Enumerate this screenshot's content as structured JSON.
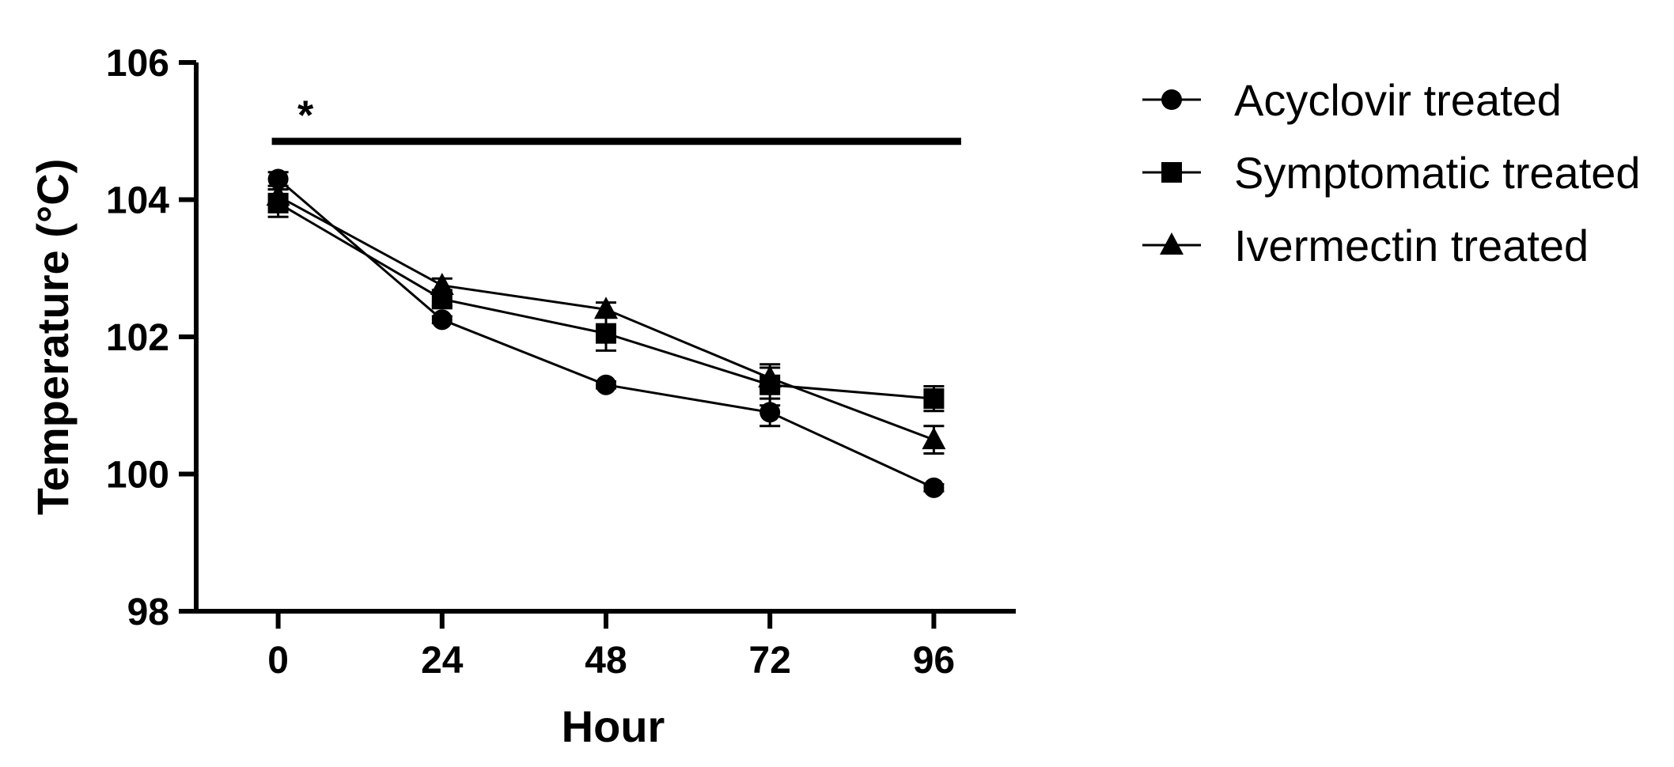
{
  "chart_data": {
    "type": "line",
    "xlabel": "Hour",
    "ylabel": "Temperature (°C)",
    "x": [
      0,
      24,
      48,
      72,
      96
    ],
    "x_tick_labels": [
      "0",
      "24",
      "48",
      "72",
      "96"
    ],
    "xlim": [
      -12,
      108
    ],
    "ylim": [
      98,
      106
    ],
    "y_ticks": [
      98,
      100,
      102,
      104,
      106
    ],
    "y_tick_labels": [
      "98",
      "100",
      "102",
      "104",
      "106"
    ],
    "grid": false,
    "legend_position": "top-right",
    "series": [
      {
        "name": "Acyclovir treated",
        "marker": "circle",
        "values": [
          104.3,
          102.25,
          101.3,
          100.9,
          99.8
        ],
        "errors": [
          0.1,
          0.05,
          0.05,
          0.2,
          0.05
        ]
      },
      {
        "name": "Symptomatic treated",
        "marker": "square",
        "values": [
          103.95,
          102.55,
          102.05,
          101.3,
          101.1
        ],
        "errors": [
          0.2,
          0.1,
          0.25,
          0.3,
          0.18
        ]
      },
      {
        "name": "Ivermectin treated",
        "marker": "triangle",
        "values": [
          104.05,
          102.75,
          102.4,
          101.4,
          100.5
        ],
        "errors": [
          0.1,
          0.1,
          0.1,
          0.15,
          0.2
        ]
      }
    ],
    "annotations": [
      {
        "text": "*",
        "x": 4,
        "y": 105.3,
        "bar": {
          "from": 0,
          "to": 100,
          "y": 104.85
        }
      }
    ],
    "colors": {
      "line": "#000000",
      "background": "#ffffff"
    }
  }
}
